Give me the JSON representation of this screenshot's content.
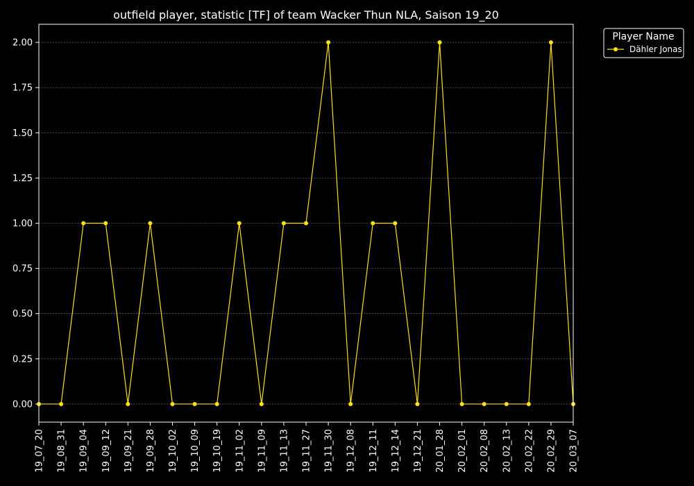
{
  "chart_data": {
    "type": "line",
    "title": "outfield player, statistic [TF] of team Wacker Thun NLA, Saison 19_20",
    "xlabel": "",
    "ylabel": "",
    "categories": [
      "19_07_20",
      "19_08_31",
      "19_09_04",
      "19_09_12",
      "19_09_21",
      "19_09_28",
      "19_10_02",
      "19_10_09",
      "19_10_19",
      "19_11_02",
      "19_11_09",
      "19_11_13",
      "19_11_27",
      "19_11_30",
      "19_12_08",
      "19_12_11",
      "19_12_14",
      "19_12_21",
      "20_01_28",
      "20_02_01",
      "20_02_08",
      "20_02_13",
      "20_02_22",
      "20_02_29",
      "20_03_07"
    ],
    "series": [
      {
        "name": "Dähler Jonas",
        "color": "#ffe11a",
        "values": [
          0,
          0,
          1,
          1,
          0,
          1,
          0,
          0,
          0,
          1,
          0,
          1,
          1,
          2,
          0,
          1,
          1,
          0,
          2,
          0,
          0,
          0,
          0,
          2,
          0
        ]
      }
    ],
    "yticks": [
      0.0,
      0.25,
      0.5,
      0.75,
      1.0,
      1.25,
      1.5,
      1.75,
      2.0
    ],
    "ytick_labels": [
      "0.00",
      "0.25",
      "0.50",
      "0.75",
      "1.00",
      "1.25",
      "1.50",
      "1.75",
      "2.00"
    ],
    "ylim": [
      -0.1,
      2.1
    ],
    "grid": true,
    "legend": {
      "title": "Player Name",
      "placement": "outside-top-right"
    },
    "background": "#000000",
    "foreground": "#ffffff",
    "grid_color": "#808080"
  }
}
